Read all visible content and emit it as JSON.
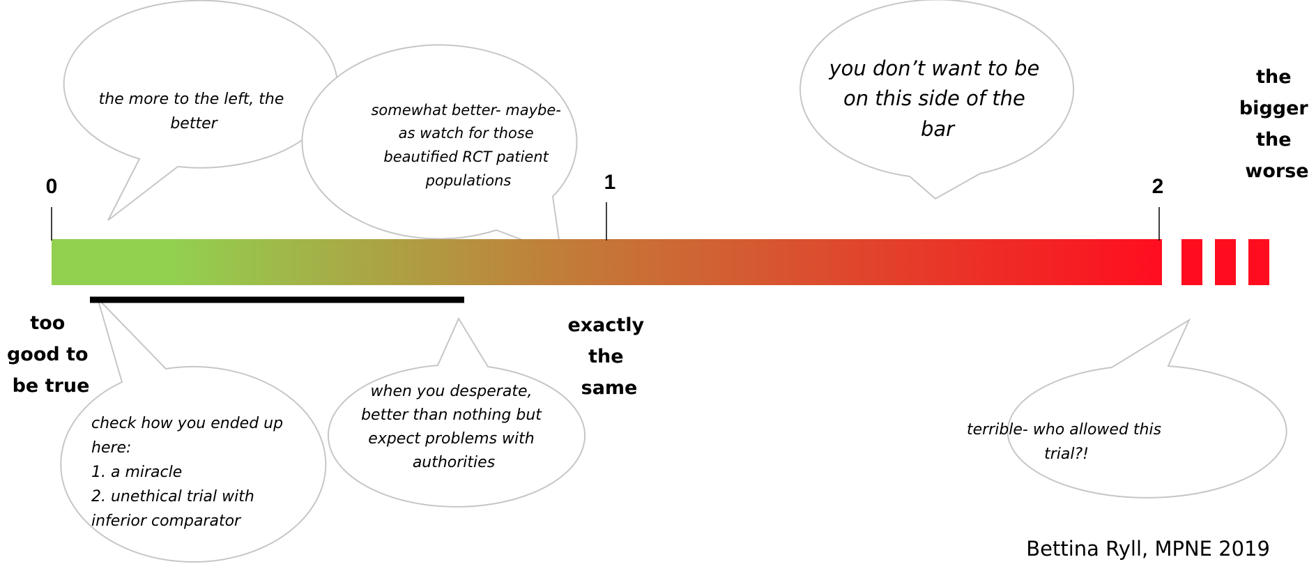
{
  "scale": {
    "ticks": [
      {
        "value": 0,
        "label": "0"
      },
      {
        "value": 1,
        "label": "1"
      },
      {
        "value": 2,
        "label": "2"
      }
    ],
    "colors": {
      "start": "#92d050",
      "mid": "#c07f3a",
      "end": "#ff0d1f",
      "dashes": "#ff0d1f",
      "line": "#000000"
    },
    "continues_beyond": true
  },
  "labels": {
    "left_end": [
      "too",
      "good to",
      "be true"
    ],
    "middle": [
      "exactly",
      "the",
      "same"
    ],
    "right_end": [
      "the",
      "bigger",
      "the",
      "worse"
    ]
  },
  "bubbles": {
    "left": [
      "the more to the left, the",
      "better"
    ],
    "somewhat": [
      "somewhat better- maybe-",
      "as watch for those",
      "beautified RCT patient",
      "populations"
    ],
    "dont_want": [
      "you don’t want to be",
      "on this side of the",
      "bar"
    ],
    "check": [
      "check how you ended up",
      "here:",
      "1. a miracle",
      "2. unethical trial with",
      "inferior comparator"
    ],
    "desperate": [
      "when you desperate,",
      "better than nothing but",
      "expect problems with",
      "authorities"
    ],
    "terrible": [
      "terrible- who allowed this",
      "trial?!"
    ]
  },
  "credit": "Bettina Ryll, MPNE 2019"
}
